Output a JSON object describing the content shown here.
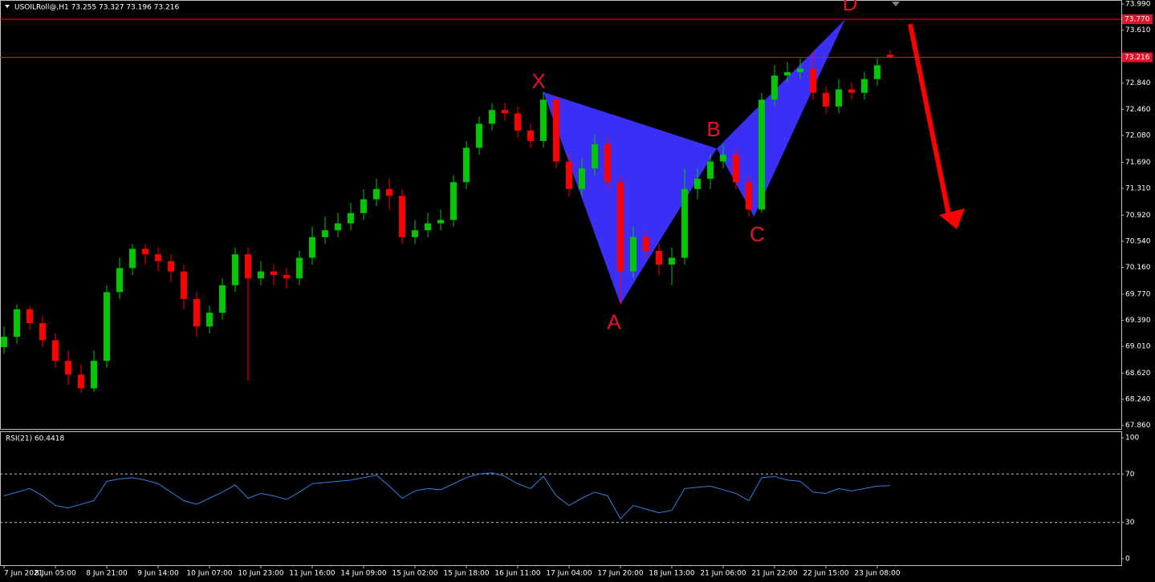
{
  "chart_data": [
    {
      "type": "candlestick",
      "title": "USOILRoll@,H1  73.255 73.327 73.196 73.216",
      "categories": [
        "7 Jun 2021",
        null,
        null,
        null,
        "8 Jun 05:00",
        null,
        null,
        null,
        "8 Jun 21:00",
        null,
        null,
        null,
        "9 Jun 14:00",
        null,
        null,
        null,
        "10 Jun 07:00",
        null,
        null,
        null,
        "10 Jun 23:00",
        null,
        null,
        null,
        "11 Jun 16:00",
        null,
        null,
        null,
        "14 Jun 09:00",
        null,
        null,
        null,
        "15 Jun 02:00",
        null,
        null,
        null,
        "15 Jun 18:00",
        null,
        null,
        null,
        "16 Jun 11:00",
        null,
        null,
        null,
        "17 Jun 04:00",
        null,
        null,
        null,
        "17 Jun 20:00",
        null,
        null,
        null,
        "18 Jun 13:00",
        null,
        null,
        null,
        "21 Jun 06:00",
        null,
        null,
        null,
        "21 Jun 22:00",
        null,
        null,
        null,
        "22 Jun 15:00",
        null,
        null,
        null,
        "23 Jun 08:00",
        null
      ],
      "open": [
        69.0,
        69.15,
        69.55,
        69.35,
        69.1,
        68.8,
        68.6,
        68.4,
        68.8,
        69.8,
        70.15,
        70.43,
        70.35,
        70.25,
        70.1,
        69.7,
        69.3,
        69.5,
        69.9,
        70.35,
        70.0,
        70.1,
        70.05,
        70.0,
        70.3,
        70.6,
        70.7,
        70.8,
        70.95,
        71.15,
        71.3,
        71.2,
        70.6,
        70.7,
        70.8,
        70.85,
        71.4,
        71.9,
        72.25,
        72.45,
        72.4,
        72.15,
        72.0,
        72.6,
        71.7,
        71.3,
        71.6,
        71.95,
        71.4,
        70.1,
        70.6,
        70.4,
        70.2,
        70.3,
        71.3,
        71.45,
        71.7,
        71.8,
        71.4,
        71.0,
        72.6,
        72.95,
        73.0,
        73.05,
        72.7,
        72.5,
        72.75,
        72.7,
        72.9,
        73.255
      ],
      "high": [
        69.3,
        69.62,
        69.6,
        69.45,
        69.2,
        68.95,
        68.75,
        68.95,
        69.9,
        70.3,
        70.5,
        70.5,
        70.45,
        70.35,
        70.2,
        69.8,
        69.6,
        70.0,
        70.45,
        70.45,
        70.25,
        70.2,
        70.15,
        70.4,
        70.75,
        70.9,
        70.95,
        71.1,
        71.3,
        71.45,
        71.45,
        71.3,
        70.85,
        70.95,
        71.0,
        71.5,
        72.0,
        72.35,
        72.55,
        72.55,
        72.5,
        72.25,
        72.71,
        72.65,
        71.8,
        71.75,
        72.08,
        72.05,
        71.5,
        70.75,
        70.7,
        70.5,
        70.45,
        71.6,
        71.6,
        71.8,
        71.95,
        71.9,
        71.5,
        72.7,
        73.1,
        73.15,
        73.2,
        73.3,
        72.8,
        72.9,
        72.85,
        73.0,
        73.2,
        73.327
      ],
      "low": [
        68.9,
        69.05,
        69.25,
        69.0,
        68.7,
        68.45,
        68.33,
        68.35,
        68.7,
        69.7,
        70.05,
        70.2,
        70.1,
        69.95,
        69.55,
        69.15,
        69.2,
        69.4,
        69.8,
        68.51,
        69.9,
        69.9,
        69.85,
        69.9,
        70.2,
        70.5,
        70.6,
        70.7,
        70.85,
        71.05,
        71.0,
        70.5,
        70.5,
        70.6,
        70.7,
        70.75,
        71.3,
        71.8,
        72.15,
        72.3,
        72.05,
        71.9,
        71.9,
        71.6,
        71.19,
        71.2,
        71.5,
        71.3,
        69.62,
        70.0,
        70.3,
        70.05,
        69.9,
        70.2,
        71.15,
        71.3,
        71.6,
        71.3,
        70.9,
        70.95,
        72.5,
        72.85,
        72.9,
        72.6,
        72.4,
        72.4,
        72.6,
        72.6,
        72.8,
        73.196
      ],
      "close": [
        69.15,
        69.55,
        69.35,
        69.1,
        68.8,
        68.6,
        68.4,
        68.8,
        69.8,
        70.15,
        70.43,
        70.35,
        70.25,
        70.1,
        69.7,
        69.3,
        69.5,
        69.9,
        70.35,
        70.0,
        70.1,
        70.05,
        70.0,
        70.3,
        70.6,
        70.7,
        70.8,
        70.95,
        71.15,
        71.3,
        71.2,
        70.6,
        70.7,
        70.8,
        70.85,
        71.4,
        71.9,
        72.25,
        72.45,
        72.4,
        72.15,
        72.0,
        72.6,
        71.7,
        71.3,
        71.6,
        71.95,
        71.4,
        70.1,
        70.6,
        70.4,
        70.2,
        70.3,
        71.3,
        71.45,
        71.7,
        71.8,
        71.4,
        71.0,
        72.6,
        72.95,
        73.0,
        73.05,
        72.7,
        72.5,
        72.75,
        72.7,
        72.9,
        73.1,
        73.216
      ],
      "up_color": "#00c800",
      "down_color": "#ff0000",
      "ylim": [
        67.81,
        74.05
      ],
      "yticks": [
        {
          "value": 73.99,
          "label": "73.990"
        },
        {
          "value": 73.61,
          "label": "73.610"
        },
        {
          "value": 72.84,
          "label": "72.840"
        },
        {
          "value": 72.46,
          "label": "72.460"
        },
        {
          "value": 72.08,
          "label": "72.080"
        },
        {
          "value": 71.69,
          "label": "71.690"
        },
        {
          "value": 71.31,
          "label": "71.310"
        },
        {
          "value": 70.92,
          "label": "70.920"
        },
        {
          "value": 70.54,
          "label": "70.540"
        },
        {
          "value": 70.16,
          "label": "70.160"
        },
        {
          "value": 69.77,
          "label": "69.770"
        },
        {
          "value": 69.39,
          "label": "69.390"
        },
        {
          "value": 69.01,
          "label": "69.010"
        },
        {
          "value": 68.62,
          "label": "68.620"
        },
        {
          "value": 68.24,
          "label": "68.240"
        },
        {
          "value": 67.86,
          "label": "67.860"
        }
      ],
      "hlines": [
        {
          "value": 73.77,
          "label": "73.770"
        },
        {
          "value": 73.216,
          "label": "73.216"
        }
      ],
      "hline_color": "#e8102a",
      "pattern": {
        "color": "#3a2ff5",
        "points": [
          {
            "label": "X",
            "value": 72.71
          },
          {
            "label": "A",
            "value": 69.62
          },
          {
            "label": "B",
            "value": 71.89
          },
          {
            "label": "C",
            "value": 70.9
          },
          {
            "label": "D",
            "value": 73.77
          }
        ]
      }
    },
    {
      "type": "line",
      "title": "RSI(21) 60.4418",
      "color": "#2f7fe0",
      "values": [
        52,
        55,
        58,
        52,
        44,
        42,
        45,
        48,
        64,
        66,
        67,
        65,
        62,
        55,
        48,
        45,
        50,
        55,
        61,
        50,
        54,
        52,
        49,
        55,
        62,
        63,
        64,
        65,
        67,
        69,
        60,
        50,
        56,
        58,
        57,
        62,
        67,
        70,
        71,
        68,
        62,
        58,
        68,
        52,
        44,
        50,
        55,
        52,
        33,
        44,
        41,
        38,
        40,
        58,
        59,
        60,
        57,
        54,
        48,
        67,
        68,
        65,
        64,
        55,
        54,
        58,
        56,
        58,
        60,
        60.4418
      ],
      "ylim": [
        0,
        100
      ],
      "yticks": [
        0,
        30,
        70,
        100
      ],
      "levels": [
        30,
        70
      ]
    }
  ]
}
